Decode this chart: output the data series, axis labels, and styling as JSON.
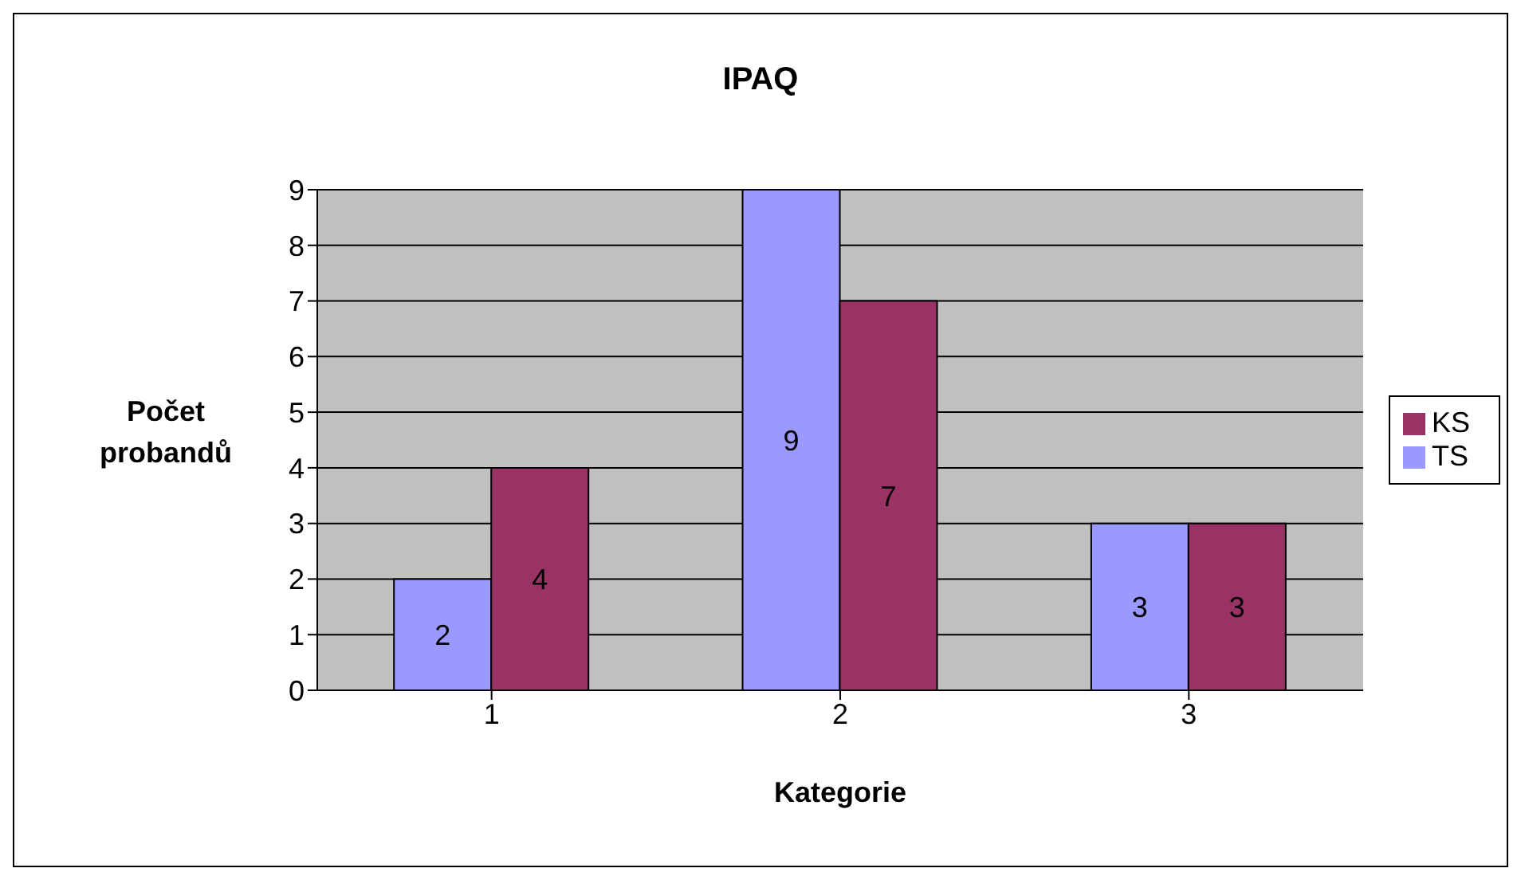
{
  "chart_data": {
    "type": "bar",
    "title": "IPAQ",
    "xlabel": "Kategorie",
    "ylabel": "Počet probandů",
    "categories": [
      "1",
      "2",
      "3"
    ],
    "series": [
      {
        "name": "TS",
        "color": "#9999ff",
        "values": [
          2,
          9,
          3
        ]
      },
      {
        "name": "KS",
        "color": "#993366",
        "values": [
          4,
          7,
          3
        ]
      }
    ],
    "ylim": [
      0,
      9
    ],
    "yticks": [
      0,
      1,
      2,
      3,
      4,
      5,
      6,
      7,
      8,
      9
    ],
    "grid": "y",
    "legend": "right",
    "data_labels": true
  }
}
